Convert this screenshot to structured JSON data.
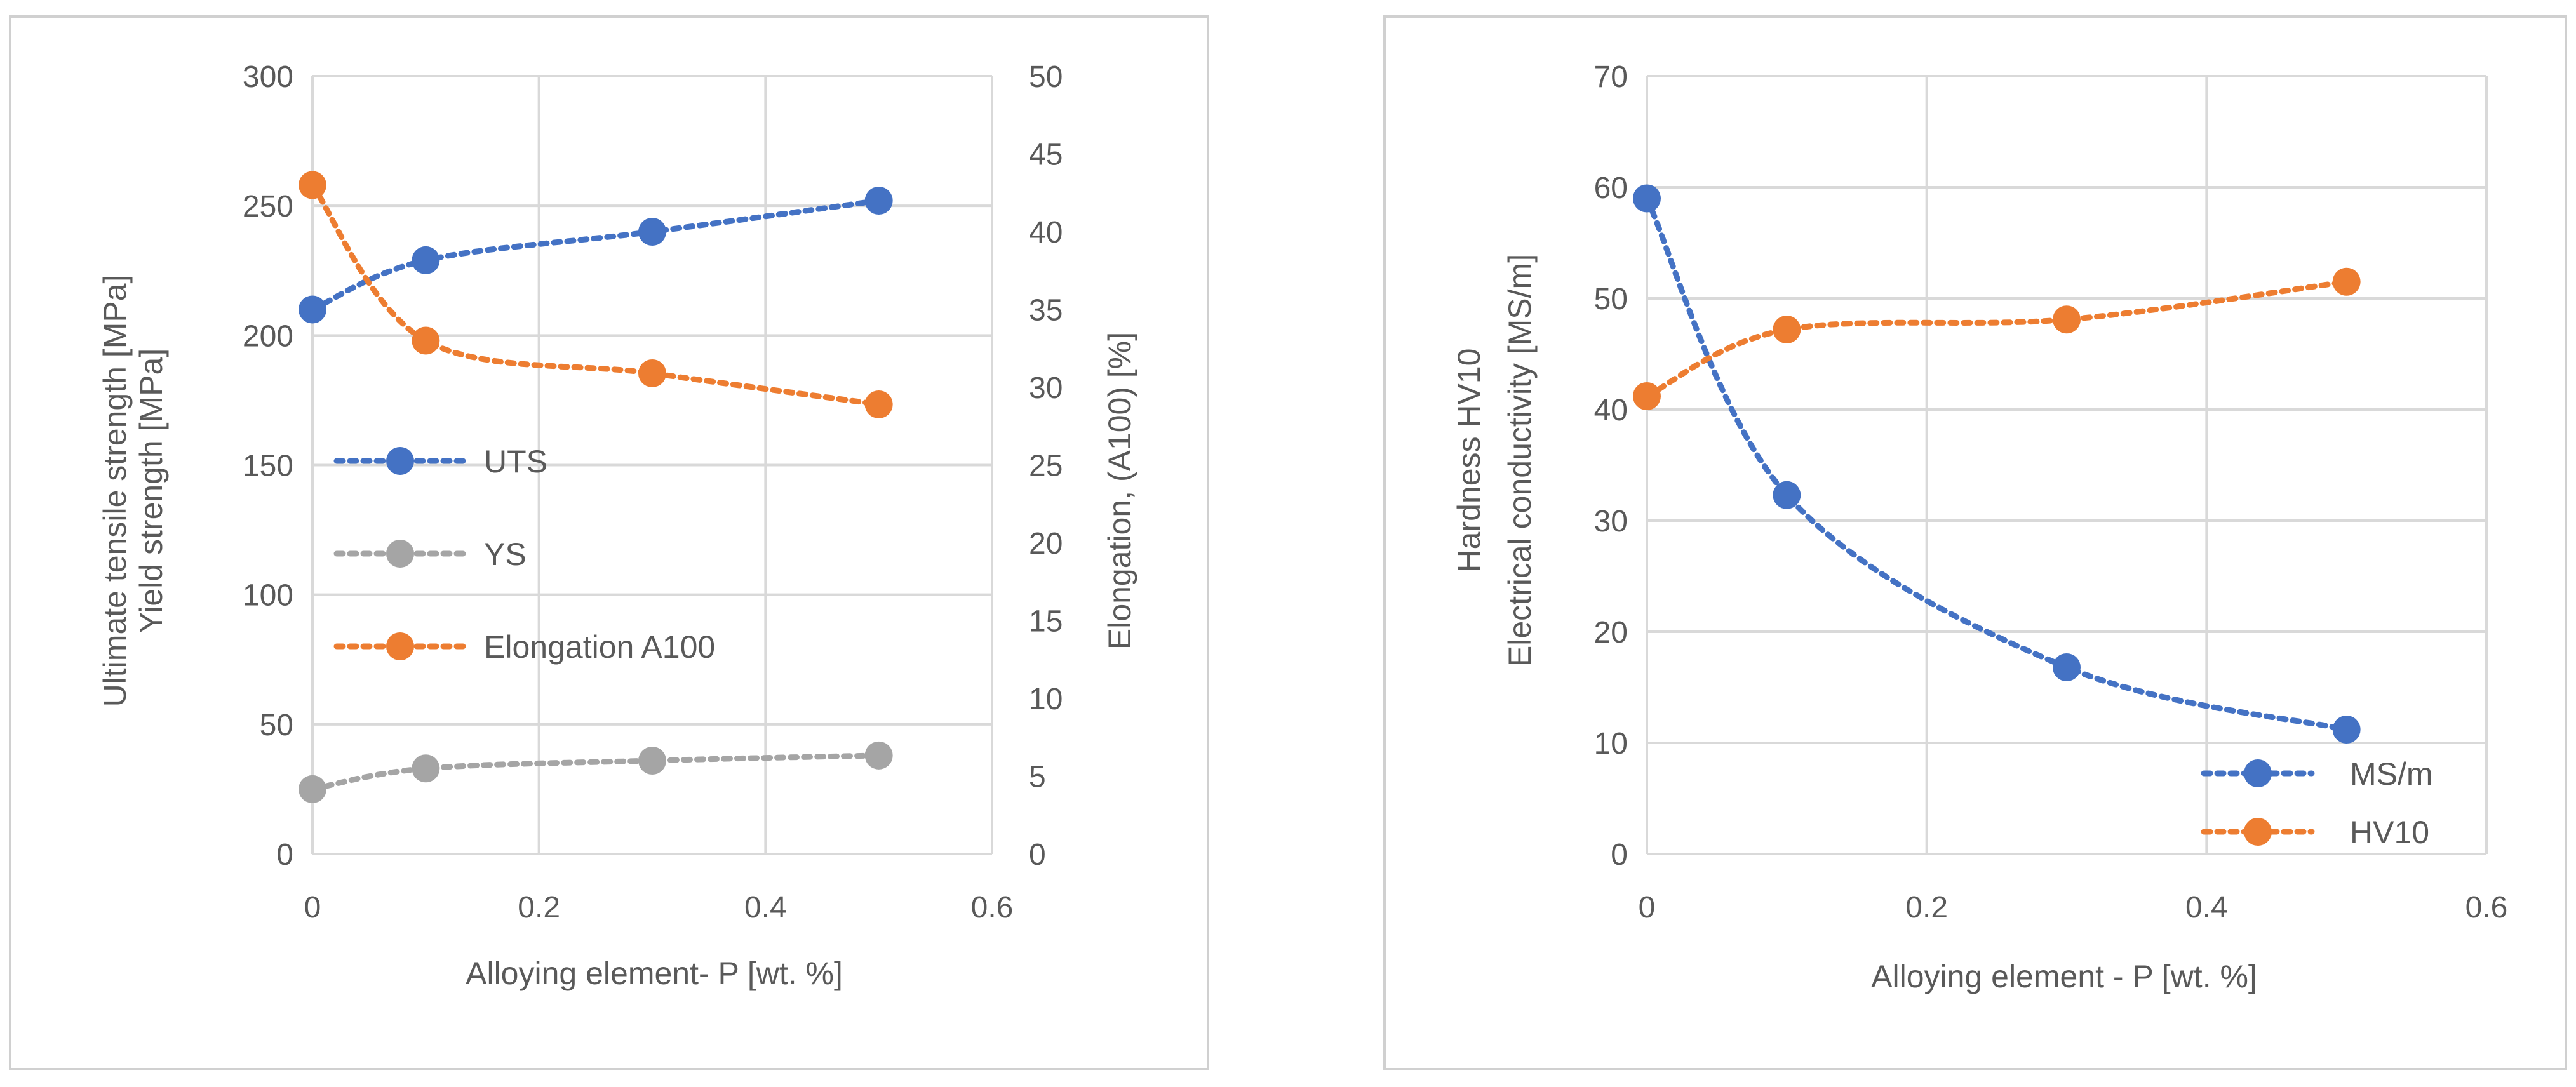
{
  "chart_data": [
    {
      "type": "line",
      "x": [
        0,
        0.1,
        0.3,
        0.5
      ],
      "xlabel": "Alloying element- P [wt. %]",
      "xlim": [
        0,
        0.6
      ],
      "xticks": [
        "0",
        "0.2",
        "0.4",
        "0.6"
      ],
      "ylabel_lines": [
        "Ultimate tensile strength [MPa]",
        "Yield strength [MPa]"
      ],
      "ylim": [
        0,
        300
      ],
      "yticks": [
        "0",
        "50",
        "100",
        "150",
        "200",
        "250",
        "300"
      ],
      "y2label": "Elongation, (A100) [%]",
      "y2lim": [
        0,
        50
      ],
      "y2ticks": [
        "0",
        "5",
        "10",
        "15",
        "20",
        "25",
        "30",
        "35",
        "40",
        "45",
        "50"
      ],
      "grid": true,
      "legend": "center-left",
      "series": [
        {
          "name": "UTS",
          "axis": "left",
          "color": "#4472C4",
          "values": [
            210,
            229,
            240,
            252
          ]
        },
        {
          "name": "YS",
          "axis": "left",
          "color": "#A5A5A5",
          "values": [
            25,
            33,
            36,
            38
          ]
        },
        {
          "name": "Elongation A100",
          "axis": "right",
          "color": "#ED7D31",
          "values": [
            43,
            33,
            30.9,
            28.9
          ]
        }
      ]
    },
    {
      "type": "line",
      "x": [
        0,
        0.1,
        0.3,
        0.5
      ],
      "xlabel": "Alloying element - P [wt. %]",
      "xlim": [
        0,
        0.6
      ],
      "xticks": [
        "0",
        "0.2",
        "0.4",
        "0.6"
      ],
      "ylabel_lines": [
        "Hardness HV10",
        "Electrical conductivity [MS/m]"
      ],
      "ylim": [
        0,
        70
      ],
      "yticks": [
        "0",
        "10",
        "20",
        "30",
        "40",
        "50",
        "60",
        "70"
      ],
      "grid": true,
      "legend": "bottom-right",
      "series": [
        {
          "name": "MS/m",
          "color": "#4472C4",
          "values": [
            59,
            32.3,
            16.8,
            11.2
          ]
        },
        {
          "name": "HV10",
          "color": "#ED7D31",
          "values": [
            41.2,
            47.2,
            48.1,
            51.5
          ]
        }
      ]
    }
  ]
}
